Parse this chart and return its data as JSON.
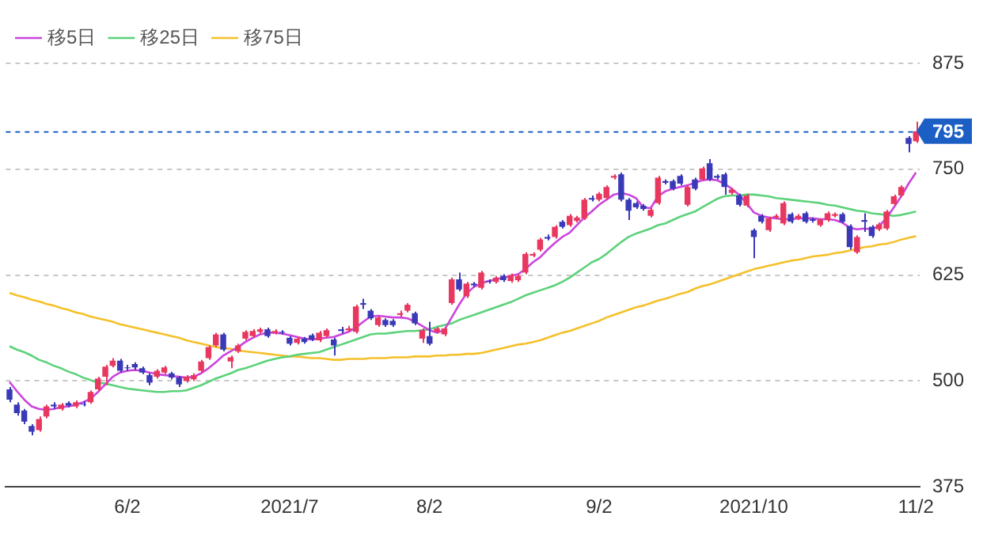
{
  "chart_data": {
    "type": "candlestick",
    "categories": [
      null,
      null,
      null,
      null,
      null,
      null,
      null,
      null,
      null,
      null,
      null,
      null,
      null,
      null,
      null,
      null,
      "6/2",
      null,
      null,
      null,
      null,
      null,
      null,
      null,
      null,
      null,
      null,
      null,
      null,
      null,
      null,
      null,
      null,
      null,
      null,
      null,
      null,
      null,
      "2021/7",
      null,
      null,
      null,
      null,
      null,
      null,
      null,
      null,
      null,
      null,
      null,
      null,
      null,
      null,
      null,
      null,
      null,
      null,
      "8/2",
      null,
      null,
      null,
      null,
      null,
      null,
      null,
      null,
      null,
      null,
      null,
      null,
      null,
      null,
      null,
      null,
      null,
      null,
      null,
      null,
      null,
      null,
      "9/2",
      null,
      null,
      null,
      null,
      null,
      null,
      null,
      null,
      null,
      null,
      null,
      null,
      null,
      null,
      null,
      null,
      null,
      null,
      null,
      null,
      "2021/10",
      null,
      null,
      null,
      null,
      null,
      null,
      null,
      null,
      null,
      null,
      null,
      null,
      null,
      null,
      null,
      null,
      null,
      null,
      null,
      null,
      null,
      "11/2"
    ],
    "ohlc": [
      [
        490,
        493,
        475,
        478
      ],
      [
        472,
        475,
        459,
        462
      ],
      [
        465,
        467,
        449,
        452
      ],
      [
        447,
        449,
        436,
        440
      ],
      [
        442,
        458,
        440,
        455
      ],
      [
        458,
        472,
        456,
        470
      ],
      [
        472,
        475,
        467,
        470
      ],
      [
        467,
        474,
        465,
        472
      ],
      [
        474,
        476,
        469,
        471
      ],
      [
        470,
        477,
        468,
        475
      ],
      [
        473,
        476,
        470,
        472
      ],
      [
        475,
        489,
        473,
        487
      ],
      [
        490,
        505,
        488,
        503
      ],
      [
        505,
        519,
        495,
        517
      ],
      [
        518,
        527,
        516,
        524
      ],
      [
        524,
        526,
        510,
        512
      ],
      [
        516,
        519,
        512,
        515
      ],
      [
        520,
        522,
        513,
        516
      ],
      [
        515,
        517,
        508,
        510
      ],
      [
        507,
        509,
        495,
        498
      ],
      [
        505,
        514,
        503,
        512
      ],
      [
        510,
        518,
        508,
        516
      ],
      [
        509,
        511,
        502,
        504
      ],
      [
        504,
        506,
        493,
        496
      ],
      [
        500,
        507,
        498,
        505
      ],
      [
        502,
        509,
        500,
        507
      ],
      [
        512,
        525,
        510,
        523
      ],
      [
        527,
        542,
        525,
        540
      ],
      [
        542,
        557,
        540,
        555
      ],
      [
        555,
        557,
        535,
        537
      ],
      [
        523,
        530,
        515,
        528
      ],
      [
        535,
        544,
        533,
        542
      ],
      [
        550,
        560,
        548,
        558
      ],
      [
        553,
        561,
        551,
        559
      ],
      [
        558,
        563,
        556,
        561
      ],
      [
        561,
        563,
        551,
        553
      ],
      [
        557,
        561,
        555,
        559
      ],
      [
        558,
        560,
        555,
        557
      ],
      [
        551,
        553,
        542,
        544
      ],
      [
        545,
        552,
        543,
        550
      ],
      [
        550,
        552,
        544,
        546
      ],
      [
        554,
        556,
        547,
        549
      ],
      [
        548,
        559,
        546,
        557
      ],
      [
        553,
        562,
        551,
        560
      ],
      [
        549,
        551,
        530,
        542
      ],
      [
        561,
        564,
        556,
        559
      ],
      [
        560,
        565,
        558,
        562
      ],
      [
        558,
        590,
        556,
        588
      ],
      [
        592,
        597,
        585,
        590
      ],
      [
        583,
        585,
        572,
        574
      ],
      [
        566,
        577,
        564,
        575
      ],
      [
        572,
        574,
        564,
        566
      ],
      [
        571,
        573,
        564,
        566
      ],
      [
        578,
        583,
        576,
        580
      ],
      [
        583,
        592,
        581,
        590
      ],
      [
        580,
        582,
        566,
        568
      ],
      [
        550,
        562,
        545,
        560
      ],
      [
        553,
        570,
        542,
        544
      ],
      [
        558,
        564,
        556,
        562
      ],
      [
        555,
        564,
        553,
        562
      ],
      [
        592,
        622,
        590,
        620
      ],
      [
        620,
        628,
        606,
        608
      ],
      [
        600,
        617,
        598,
        615
      ],
      [
        615,
        617,
        611,
        613
      ],
      [
        610,
        630,
        608,
        628
      ],
      [
        618,
        620,
        615,
        617
      ],
      [
        617,
        624,
        615,
        622
      ],
      [
        624,
        626,
        617,
        619
      ],
      [
        618,
        627,
        616,
        625
      ],
      [
        619,
        626,
        617,
        624
      ],
      [
        628,
        652,
        626,
        650
      ],
      [
        648,
        652,
        646,
        650
      ],
      [
        655,
        669,
        653,
        667
      ],
      [
        670,
        673,
        666,
        668
      ],
      [
        670,
        684,
        668,
        682
      ],
      [
        688,
        690,
        680,
        682
      ],
      [
        684,
        697,
        682,
        695
      ],
      [
        689,
        695,
        687,
        693
      ],
      [
        692,
        716,
        690,
        714
      ],
      [
        716,
        719,
        712,
        714
      ],
      [
        714,
        723,
        712,
        721
      ],
      [
        716,
        731,
        714,
        729
      ],
      [
        740,
        744,
        738,
        742
      ],
      [
        744,
        746,
        712,
        714
      ],
      [
        714,
        716,
        690,
        701
      ],
      [
        710,
        712,
        703,
        705
      ],
      [
        707,
        709,
        701,
        703
      ],
      [
        695,
        704,
        693,
        702
      ],
      [
        710,
        742,
        708,
        740
      ],
      [
        736,
        738,
        732,
        734
      ],
      [
        736,
        738,
        725,
        727
      ],
      [
        742,
        744,
        731,
        733
      ],
      [
        708,
        731,
        706,
        729
      ],
      [
        738,
        740,
        725,
        727
      ],
      [
        738,
        753,
        736,
        751
      ],
      [
        757,
        762,
        736,
        738
      ],
      [
        742,
        744,
        738,
        740
      ],
      [
        744,
        746,
        720,
        729
      ],
      [
        722,
        728,
        720,
        726
      ],
      [
        719,
        721,
        706,
        708
      ],
      [
        707,
        721,
        705,
        719
      ],
      [
        678,
        680,
        645,
        670
      ],
      [
        695,
        697,
        686,
        688
      ],
      [
        678,
        694,
        676,
        692
      ],
      [
        693,
        697,
        691,
        695
      ],
      [
        686,
        712,
        684,
        710
      ],
      [
        697,
        699,
        686,
        688
      ],
      [
        692,
        697,
        690,
        695
      ],
      [
        698,
        700,
        686,
        688
      ],
      [
        691,
        693,
        687,
        689
      ],
      [
        684,
        692,
        682,
        690
      ],
      [
        690,
        700,
        688,
        698
      ],
      [
        695,
        699,
        693,
        697
      ],
      [
        697,
        699,
        686,
        688
      ],
      [
        683,
        685,
        655,
        658
      ],
      [
        652,
        672,
        650,
        670
      ],
      [
        690,
        698,
        676,
        688
      ],
      [
        682,
        684,
        669,
        671
      ],
      [
        679,
        687,
        677,
        685
      ],
      [
        680,
        702,
        678,
        700
      ],
      [
        709,
        720,
        707,
        718
      ],
      [
        719,
        731,
        717,
        729
      ],
      [
        787,
        789,
        770,
        780
      ],
      [
        783,
        806,
        781,
        795
      ]
    ],
    "series": [
      {
        "name": "移5日",
        "type": "line",
        "color": "#cc44dd",
        "values": [
          499,
          488,
          478,
          470,
          467,
          466,
          467,
          469,
          470,
          472,
          475,
          479,
          487,
          496,
          505,
          510,
          512,
          513,
          512,
          510,
          508,
          507,
          506,
          505,
          504,
          505,
          509,
          515,
          522,
          530,
          535,
          540,
          546,
          551,
          555,
          557,
          557,
          556,
          554,
          552,
          550,
          549,
          550,
          551,
          552,
          555,
          558,
          563,
          570,
          576,
          577,
          576,
          575,
          575,
          574,
          570,
          565,
          560,
          557,
          560,
          575,
          590,
          603,
          611,
          615,
          618,
          620,
          622,
          624,
          626,
          632,
          640,
          646,
          655,
          663,
          670,
          675,
          684,
          693,
          700,
          708,
          714,
          720,
          722,
          720,
          716,
          705,
          704,
          718,
          724,
          727,
          729,
          731,
          734,
          737,
          738,
          737,
          733,
          727,
          720,
          710,
          699,
          695,
          693,
          692,
          691,
          691,
          692,
          692,
          692,
          691,
          691,
          690,
          687,
          681,
          679,
          680,
          679,
          683,
          692,
          705,
          718,
          733,
          746
        ]
      },
      {
        "name": "移25日",
        "type": "line",
        "color": "#5cd27a",
        "values": [
          541,
          537,
          534,
          530,
          525,
          522,
          518,
          515,
          511,
          508,
          504,
          501,
          498,
          497,
          495,
          493,
          491,
          490,
          489,
          488,
          487,
          487,
          488,
          488,
          489,
          492,
          495,
          499,
          503,
          506,
          509,
          513,
          515,
          518,
          521,
          524,
          526,
          528,
          529,
          531,
          532,
          533,
          534,
          537,
          540,
          543,
          546,
          549,
          552,
          555,
          556,
          556,
          557,
          558,
          559,
          559,
          560,
          561,
          564,
          566,
          568,
          572,
          575,
          578,
          581,
          584,
          587,
          590,
          593,
          597,
          601,
          604,
          607,
          610,
          613,
          617,
          622,
          628,
          634,
          640,
          644,
          650,
          657,
          664,
          670,
          674,
          677,
          680,
          684,
          686,
          690,
          694,
          697,
          700,
          705,
          710,
          715,
          718,
          719,
          719,
          720,
          720,
          719,
          718,
          716,
          715,
          714,
          713,
          712,
          711,
          710,
          708,
          707,
          705,
          703,
          701,
          700,
          698,
          697,
          696,
          695,
          696,
          698,
          700
        ]
      },
      {
        "name": "移75日",
        "type": "line",
        "color": "#f5c02a",
        "values": [
          604,
          601,
          599,
          596,
          594,
          591,
          589,
          586,
          584,
          581,
          579,
          576,
          574,
          572,
          570,
          567,
          565,
          563,
          561,
          559,
          557,
          555,
          553,
          551,
          548,
          546,
          544,
          542,
          540,
          539,
          538,
          536,
          535,
          534,
          533,
          532,
          531,
          530,
          529,
          529,
          528,
          527,
          527,
          526,
          525,
          525,
          526,
          526,
          526,
          527,
          527,
          527,
          528,
          528,
          528,
          529,
          529,
          529,
          530,
          530,
          531,
          531,
          532,
          532,
          533,
          535,
          537,
          539,
          541,
          543,
          544,
          546,
          548,
          551,
          554,
          557,
          559,
          562,
          565,
          568,
          571,
          575,
          578,
          581,
          584,
          587,
          589,
          592,
          595,
          597,
          600,
          603,
          605,
          609,
          612,
          614,
          617,
          620,
          623,
          626,
          629,
          632,
          634,
          636,
          638,
          640,
          642,
          643,
          645,
          647,
          648,
          649,
          651,
          652,
          654,
          656,
          658,
          659,
          661,
          662,
          664,
          667,
          669,
          671
        ]
      }
    ],
    "ylim": [
      375,
      875
    ],
    "yticks": [
      375,
      500,
      625,
      750,
      875
    ],
    "grid": "y",
    "legend": "top left",
    "ref_lines": [
      {
        "axis": "y",
        "value": 795,
        "label": "795",
        "color": "#1c5fc4",
        "line_style": "dashed"
      }
    ]
  }
}
